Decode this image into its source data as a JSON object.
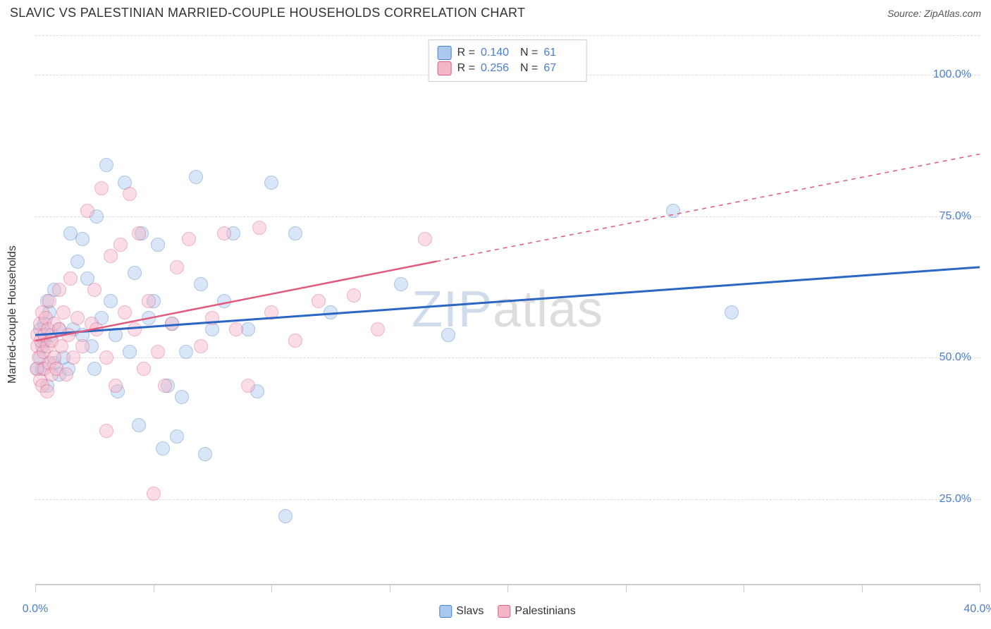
{
  "title": "SLAVIC VS PALESTINIAN MARRIED-COUPLE HOUSEHOLDS CORRELATION CHART",
  "source_prefix": "Source: ",
  "source_name": "ZipAtlas.com",
  "ylabel": "Married-couple Households",
  "watermark_zip": "ZIP",
  "watermark_atlas": "atlas",
  "chart": {
    "type": "scatter",
    "xlim": [
      0,
      40
    ],
    "ylim": [
      10,
      107
    ],
    "background_color": "#ffffff",
    "grid_color": "#dddddd",
    "axis_color": "#cccccc",
    "label_color": "#4a7ecc",
    "point_radius": 10,
    "point_opacity": 0.45,
    "ygrid": [
      25,
      50,
      75,
      100,
      107
    ],
    "ytick_labels": {
      "25": "25.0%",
      "50": "50.0%",
      "75": "75.0%",
      "100": "100.0%"
    },
    "xticks": [
      0,
      5,
      10,
      15,
      20,
      25,
      30,
      35,
      40
    ],
    "xtick_labels": {
      "0": "0.0%",
      "40": "40.0%"
    },
    "series": [
      {
        "key": "slavs",
        "label": "Slavs",
        "R": "0.140",
        "N": "61",
        "fill": "#a9c9ef",
        "stroke": "#4a7ecc",
        "line_color": "#2c66c4",
        "line_width": 3,
        "trend": {
          "x1": 0,
          "y1": 54,
          "x2": 40,
          "y2": 66,
          "solid_end_x": 40
        },
        "points": [
          [
            0.1,
            48
          ],
          [
            0.2,
            50
          ],
          [
            0.2,
            55
          ],
          [
            0.3,
            52
          ],
          [
            0.3,
            48
          ],
          [
            0.4,
            56
          ],
          [
            0.4,
            53
          ],
          [
            0.5,
            60
          ],
          [
            0.5,
            45
          ],
          [
            0.6,
            58
          ],
          [
            0.7,
            54
          ],
          [
            0.8,
            49
          ],
          [
            0.8,
            62
          ],
          [
            1.0,
            55
          ],
          [
            1.0,
            47
          ],
          [
            1.2,
            50
          ],
          [
            1.4,
            48
          ],
          [
            1.5,
            72
          ],
          [
            1.6,
            55
          ],
          [
            1.8,
            67
          ],
          [
            2.0,
            54
          ],
          [
            2.0,
            71
          ],
          [
            2.2,
            64
          ],
          [
            2.4,
            52
          ],
          [
            2.5,
            48
          ],
          [
            2.6,
            75
          ],
          [
            2.8,
            57
          ],
          [
            3.0,
            84
          ],
          [
            3.2,
            60
          ],
          [
            3.4,
            54
          ],
          [
            3.5,
            44
          ],
          [
            3.8,
            81
          ],
          [
            4.0,
            51
          ],
          [
            4.2,
            65
          ],
          [
            4.4,
            38
          ],
          [
            4.5,
            72
          ],
          [
            4.8,
            57
          ],
          [
            5.0,
            60
          ],
          [
            5.2,
            70
          ],
          [
            5.4,
            34
          ],
          [
            5.6,
            45
          ],
          [
            5.8,
            56
          ],
          [
            6.0,
            36
          ],
          [
            6.2,
            43
          ],
          [
            6.4,
            51
          ],
          [
            6.8,
            82
          ],
          [
            7.0,
            63
          ],
          [
            7.2,
            33
          ],
          [
            7.5,
            55
          ],
          [
            8.0,
            60
          ],
          [
            8.4,
            72
          ],
          [
            9.0,
            55
          ],
          [
            9.4,
            44
          ],
          [
            10.0,
            81
          ],
          [
            10.6,
            22
          ],
          [
            11.0,
            72
          ],
          [
            12.5,
            58
          ],
          [
            15.5,
            63
          ],
          [
            17.5,
            54
          ],
          [
            27.0,
            76
          ],
          [
            29.5,
            58
          ]
        ]
      },
      {
        "key": "palestinians",
        "label": "Palestinians",
        "R": "0.256",
        "N": "67",
        "fill": "#f5b6c8",
        "stroke": "#e05a7d",
        "line_color": "#e05a7d",
        "line_width": 2.5,
        "trend": {
          "x1": 0,
          "y1": 53,
          "x2": 40,
          "y2": 86,
          "solid_end_x": 17
        },
        "points": [
          [
            0.05,
            48
          ],
          [
            0.1,
            52
          ],
          [
            0.1,
            54
          ],
          [
            0.15,
            50
          ],
          [
            0.2,
            56
          ],
          [
            0.2,
            46
          ],
          [
            0.25,
            53
          ],
          [
            0.3,
            58
          ],
          [
            0.3,
            45
          ],
          [
            0.35,
            51
          ],
          [
            0.4,
            54
          ],
          [
            0.4,
            48
          ],
          [
            0.45,
            57
          ],
          [
            0.5,
            52
          ],
          [
            0.5,
            44
          ],
          [
            0.55,
            55
          ],
          [
            0.6,
            49
          ],
          [
            0.6,
            60
          ],
          [
            0.7,
            53
          ],
          [
            0.7,
            47
          ],
          [
            0.8,
            56
          ],
          [
            0.8,
            50
          ],
          [
            0.9,
            48
          ],
          [
            1.0,
            55
          ],
          [
            1.0,
            62
          ],
          [
            1.1,
            52
          ],
          [
            1.2,
            58
          ],
          [
            1.3,
            47
          ],
          [
            1.4,
            54
          ],
          [
            1.5,
            64
          ],
          [
            1.6,
            50
          ],
          [
            1.8,
            57
          ],
          [
            2.0,
            52
          ],
          [
            2.2,
            76
          ],
          [
            2.4,
            56
          ],
          [
            2.5,
            62
          ],
          [
            2.6,
            55
          ],
          [
            2.8,
            80
          ],
          [
            3.0,
            50
          ],
          [
            3.2,
            68
          ],
          [
            3.4,
            45
          ],
          [
            3.6,
            70
          ],
          [
            3.8,
            58
          ],
          [
            4.0,
            79
          ],
          [
            4.2,
            55
          ],
          [
            4.4,
            72
          ],
          [
            4.6,
            48
          ],
          [
            4.8,
            60
          ],
          [
            5.0,
            26
          ],
          [
            5.2,
            51
          ],
          [
            5.5,
            45
          ],
          [
            5.8,
            56
          ],
          [
            6.0,
            66
          ],
          [
            6.5,
            71
          ],
          [
            7.0,
            52
          ],
          [
            7.5,
            57
          ],
          [
            8.0,
            72
          ],
          [
            8.5,
            55
          ],
          [
            9.0,
            45
          ],
          [
            9.5,
            73
          ],
          [
            10.0,
            58
          ],
          [
            11.0,
            53
          ],
          [
            12.0,
            60
          ],
          [
            13.5,
            61
          ],
          [
            14.5,
            55
          ],
          [
            16.5,
            71
          ],
          [
            3.0,
            37
          ]
        ]
      }
    ],
    "legend_top": {
      "r_label": "R =",
      "n_label": "N ="
    }
  }
}
